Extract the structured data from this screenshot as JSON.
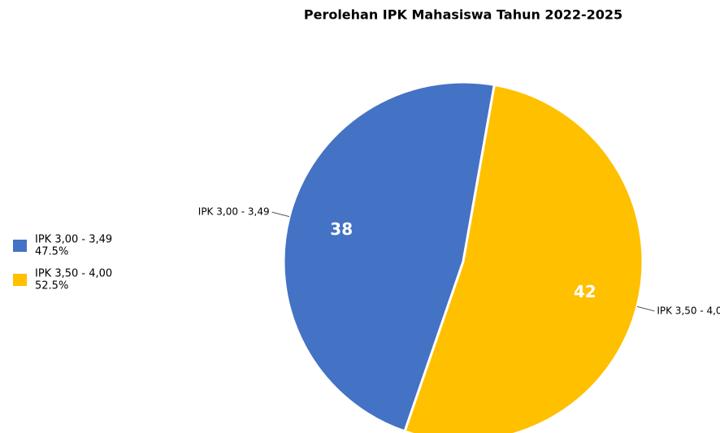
{
  "chart_data": {
    "type": "pie",
    "title": "Perolehan IPK Mahasiswa Tahun 2022-2025",
    "categories": [
      "IPK 3,00 - 3,49",
      "IPK 3,50 - 4,00"
    ],
    "values": [
      38,
      42
    ],
    "legend_labels": [
      "47.5%",
      "52.5%"
    ],
    "colors": [
      "#4472c4",
      "#ffc000"
    ]
  }
}
